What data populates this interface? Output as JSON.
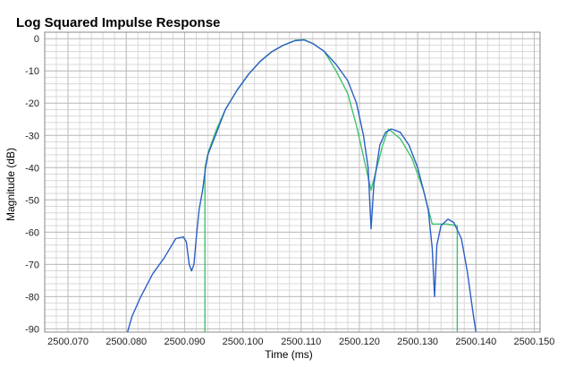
{
  "chart_data": {
    "type": "line",
    "title": "Log Squared Impulse Response",
    "xlabel": "Time (ms)",
    "ylabel": "Magnitude (dB)",
    "xlim": [
      2500.066,
      2500.151
    ],
    "ylim": [
      -91,
      2
    ],
    "x_ticks": [
      2500.07,
      2500.08,
      2500.09,
      2500.1,
      2500.11,
      2500.12,
      2500.13,
      2500.14,
      2500.15
    ],
    "x_tick_labels": [
      "2500.070",
      "2500.080",
      "2500.090",
      "2500.100",
      "2500.110",
      "2500.120",
      "2500.130",
      "2500.140",
      "2500.150"
    ],
    "y_ticks": [
      0,
      -10,
      -20,
      -30,
      -40,
      -50,
      -60,
      -70,
      -80,
      -90
    ],
    "y_tick_labels": [
      "0",
      "-10",
      "-20",
      "-30",
      "-40",
      "-50",
      "-60",
      "-70",
      "-80",
      "-90"
    ],
    "grid": true,
    "colors": {
      "blue": "#2b5fc7",
      "green": "#3ec46d",
      "grid": "#d9d9d9",
      "grid_major": "#bdbdbd"
    },
    "series": [
      {
        "color": "#3ec46d",
        "points": [
          [
            2500.0935,
            -91
          ],
          [
            2500.0935,
            -40
          ],
          [
            2500.0941,
            -35
          ],
          [
            2500.0955,
            -28
          ],
          [
            2500.097,
            -22
          ],
          [
            2500.099,
            -16
          ],
          [
            2500.101,
            -11
          ],
          [
            2500.103,
            -7
          ],
          [
            2500.105,
            -4
          ],
          [
            2500.107,
            -2
          ],
          [
            2500.109,
            -0.5
          ],
          [
            2500.1105,
            -0.3
          ],
          [
            2500.112,
            -1.5
          ],
          [
            2500.114,
            -4
          ],
          [
            2500.116,
            -10
          ],
          [
            2500.118,
            -17
          ],
          [
            2500.1195,
            -27
          ],
          [
            2500.122,
            -47
          ],
          [
            2500.124,
            -33
          ],
          [
            2500.125,
            -28
          ],
          [
            2500.127,
            -31
          ],
          [
            2500.129,
            -37
          ],
          [
            2500.131,
            -47
          ],
          [
            2500.1325,
            -57.5
          ],
          [
            2500.135,
            -57.5
          ],
          [
            2500.1368,
            -58
          ],
          [
            2500.1368,
            -91
          ]
        ]
      },
      {
        "color": "#2b5fc7",
        "points": [
          [
            2500.0802,
            -91
          ],
          [
            2500.081,
            -86
          ],
          [
            2500.0825,
            -80
          ],
          [
            2500.0845,
            -73
          ],
          [
            2500.0865,
            -68
          ],
          [
            2500.0885,
            -62
          ],
          [
            2500.0898,
            -61.5
          ],
          [
            2500.0903,
            -63
          ],
          [
            2500.0908,
            -70
          ],
          [
            2500.0912,
            -72
          ],
          [
            2500.0916,
            -70
          ],
          [
            2500.0921,
            -60
          ],
          [
            2500.0925,
            -53
          ],
          [
            2500.0931,
            -47
          ],
          [
            2500.0936,
            -40
          ],
          [
            2500.094,
            -36
          ],
          [
            2500.0955,
            -29
          ],
          [
            2500.097,
            -22
          ],
          [
            2500.099,
            -16
          ],
          [
            2500.101,
            -11
          ],
          [
            2500.103,
            -7
          ],
          [
            2500.105,
            -4
          ],
          [
            2500.107,
            -2
          ],
          [
            2500.109,
            -0.6
          ],
          [
            2500.1105,
            -0.4
          ],
          [
            2500.112,
            -1.5
          ],
          [
            2500.114,
            -4
          ],
          [
            2500.116,
            -8
          ],
          [
            2500.118,
            -13
          ],
          [
            2500.1195,
            -20
          ],
          [
            2500.1207,
            -30
          ],
          [
            2500.1215,
            -40
          ],
          [
            2500.122,
            -59
          ],
          [
            2500.1225,
            -45
          ],
          [
            2500.1235,
            -33
          ],
          [
            2500.1245,
            -29
          ],
          [
            2500.1255,
            -28
          ],
          [
            2500.127,
            -29
          ],
          [
            2500.1285,
            -33
          ],
          [
            2500.13,
            -40
          ],
          [
            2500.131,
            -47
          ],
          [
            2500.1318,
            -53
          ],
          [
            2500.1325,
            -65
          ],
          [
            2500.1329,
            -80
          ],
          [
            2500.1333,
            -64
          ],
          [
            2500.134,
            -58
          ],
          [
            2500.1352,
            -56
          ],
          [
            2500.1362,
            -57
          ],
          [
            2500.1375,
            -62
          ],
          [
            2500.1385,
            -72
          ],
          [
            2500.1395,
            -85
          ],
          [
            2500.14,
            -91
          ]
        ]
      }
    ]
  }
}
